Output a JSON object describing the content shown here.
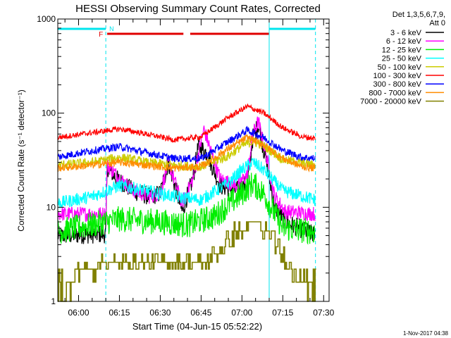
{
  "chart_data": {
    "type": "line",
    "title": "HESSI Observing Summary Count Rates, Corrected",
    "xlabel": "Start Time (04-Jun-15 05:52:22)",
    "ylabel": "Corrected Count Rate (s⁻¹ detector⁻¹)",
    "yscale": "log",
    "ylim": [
      1,
      1000
    ],
    "xlim": [
      "05:52:22",
      "07:32:00"
    ],
    "x_ticks": [
      "06:00",
      "06:15",
      "06:30",
      "06:45",
      "07:00",
      "07:15",
      "07:30"
    ],
    "y_ticks": [
      "1",
      "10",
      "100",
      "1000"
    ],
    "legend_header": [
      "Det 1,3,5,6,7,9,",
      "Att 0"
    ],
    "legend_position": "right",
    "flags": {
      "night_label": "N",
      "flare_label": "F",
      "night_color": "#00e5ee",
      "flare_color": "#e00000",
      "night_intervals": [
        [
          "05:52:22",
          "06:10:00"
        ],
        [
          "07:10:00",
          "07:27:00"
        ]
      ],
      "flare_intervals": [
        [
          "06:10:30",
          "06:38:30"
        ],
        [
          "06:41:00",
          "07:10:00"
        ]
      ],
      "vertical_lines": [
        "06:10:00",
        "07:10:00",
        "07:27:00"
      ]
    },
    "footer_timestamp": "1-Nov-2017 04:38",
    "series": [
      {
        "name": "3 - 6 keV",
        "color": "#000000",
        "noise": 0.1,
        "x": [
          "05:52",
          "06:10",
          "06:10:30",
          "06:14",
          "06:20",
          "06:26",
          "06:30",
          "06:33",
          "06:38",
          "06:42",
          "06:44",
          "06:47",
          "06:52",
          "06:58",
          "07:02",
          "07:04",
          "07:06",
          "07:09",
          "07:12",
          "07:16",
          "07:27"
        ],
        "y": [
          5,
          5.2,
          27,
          20,
          15,
          13,
          14,
          30,
          9,
          20,
          45,
          38,
          17,
          15,
          18,
          55,
          75,
          30,
          10,
          7,
          5
        ]
      },
      {
        "name": "6 - 12 keV",
        "color": "#ff00ff",
        "noise": 0.08,
        "x": [
          "05:52",
          "06:10",
          "06:10:30",
          "06:14",
          "06:20",
          "06:26",
          "06:30",
          "06:33",
          "06:38",
          "06:42",
          "06:46",
          "06:48",
          "06:52",
          "06:58",
          "07:02",
          "07:04",
          "07:06",
          "07:09",
          "07:12",
          "07:16",
          "07:27"
        ],
        "y": [
          8.5,
          8.5,
          28,
          22,
          15,
          13,
          14,
          30,
          11,
          20,
          68,
          45,
          20,
          17,
          22,
          60,
          82,
          35,
          13,
          9,
          8.5
        ]
      },
      {
        "name": "12 - 25 keV",
        "color": "#00ee00",
        "noise": 0.14,
        "x": [
          "05:52",
          "06:05",
          "06:15",
          "06:30",
          "06:40",
          "06:50",
          "07:00",
          "07:04",
          "07:08",
          "07:15",
          "07:27"
        ],
        "y": [
          5.5,
          6.5,
          7.5,
          7.0,
          6.5,
          8,
          14,
          18,
          14,
          6,
          5.5
        ]
      },
      {
        "name": "25 - 50 keV",
        "color": "#00ffff",
        "noise": 0.07,
        "x": [
          "05:52",
          "06:05",
          "06:15",
          "06:25",
          "06:35",
          "06:45",
          "06:55",
          "07:00",
          "07:04",
          "07:08",
          "07:15",
          "07:27"
        ],
        "y": [
          11,
          13,
          17,
          15,
          13,
          12,
          18,
          25,
          30,
          25,
          15,
          12
        ]
      },
      {
        "name": "50 - 100 keV",
        "color": "#cccc00",
        "noise": 0.05,
        "x": [
          "05:52",
          "06:05",
          "06:15",
          "06:25",
          "06:35",
          "06:45",
          "06:55",
          "07:00",
          "07:04",
          "07:08",
          "07:15",
          "07:27"
        ],
        "y": [
          28,
          30,
          34,
          30,
          28,
          27,
          35,
          45,
          50,
          45,
          32,
          28
        ]
      },
      {
        "name": "100 - 300 keV",
        "color": "#ff0000",
        "noise": 0.03,
        "x": [
          "05:52",
          "06:05",
          "06:15",
          "06:25",
          "06:35",
          "06:45",
          "06:55",
          "07:02",
          "07:08",
          "07:15",
          "07:22",
          "07:27"
        ],
        "y": [
          55,
          62,
          68,
          60,
          52,
          56,
          90,
          118,
          100,
          70,
          56,
          54
        ]
      },
      {
        "name": "300 - 800 keV",
        "color": "#0000ff",
        "noise": 0.04,
        "x": [
          "05:52",
          "06:05",
          "06:15",
          "06:25",
          "06:35",
          "06:45",
          "06:55",
          "07:02",
          "07:08",
          "07:15",
          "07:22",
          "07:27"
        ],
        "y": [
          34,
          40,
          44,
          38,
          33,
          33,
          50,
          66,
          55,
          40,
          34,
          33
        ]
      },
      {
        "name": "800 - 7000 keV",
        "color": "#ff8c00",
        "noise": 0.04,
        "x": [
          "05:52",
          "06:05",
          "06:15",
          "06:25",
          "06:35",
          "06:45",
          "06:55",
          "07:02",
          "07:08",
          "07:15",
          "07:22",
          "07:27"
        ],
        "y": [
          26,
          28,
          30,
          28,
          26,
          27,
          42,
          55,
          46,
          33,
          27,
          26
        ]
      },
      {
        "name": "7000 - 20000 keV",
        "color": "#808000",
        "noise": 0.0,
        "step": true,
        "x": [
          "05:52",
          "06:05",
          "06:08",
          "06:20",
          "06:35",
          "06:45",
          "06:50",
          "06:55",
          "07:00",
          "07:05",
          "07:10",
          "07:15",
          "07:20",
          "07:27"
        ],
        "y": [
          1.6,
          2.2,
          2.6,
          2.6,
          2.4,
          2.5,
          3.2,
          4.6,
          6.0,
          7.0,
          5.2,
          3.0,
          2.0,
          1.5
        ]
      }
    ]
  }
}
